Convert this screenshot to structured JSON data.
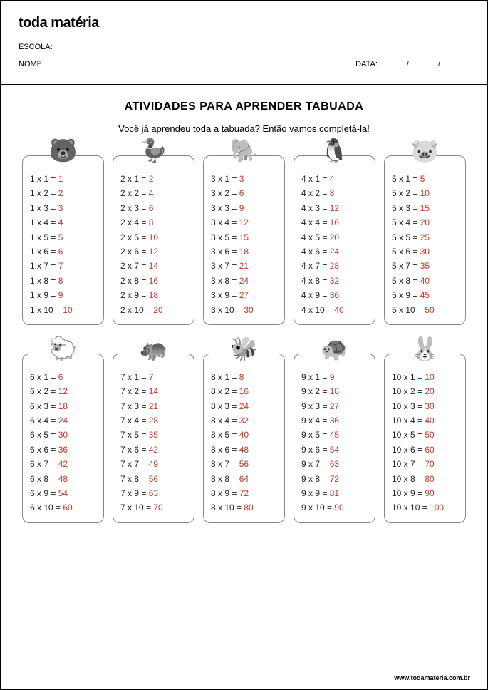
{
  "brand": "toda matéria",
  "labels": {
    "escola": "ESCOLA:",
    "nome": "NOME:",
    "data": "DATA:"
  },
  "title": "ATIVIDADES PARA APRENDER TABUADA",
  "subtitle": "Você já aprendeu toda a tabuada? Então vamos completá-la!",
  "footer": "www.todamateria.com.br",
  "answer_color": "#c0392b",
  "text_color": "#222222",
  "border_color": "#888888",
  "tables": [
    {
      "n": 1,
      "icon": "🐻"
    },
    {
      "n": 2,
      "icon": "🦆"
    },
    {
      "n": 3,
      "icon": "🐘"
    },
    {
      "n": 4,
      "icon": "🐧"
    },
    {
      "n": 5,
      "icon": "🐷"
    },
    {
      "n": 6,
      "icon": "🐑"
    },
    {
      "n": 7,
      "icon": "🦛"
    },
    {
      "n": 8,
      "icon": "🐝"
    },
    {
      "n": 9,
      "icon": "🐢"
    },
    {
      "n": 10,
      "icon": "🐰"
    }
  ],
  "multipliers": [
    1,
    2,
    3,
    4,
    5,
    6,
    7,
    8,
    9,
    10
  ]
}
